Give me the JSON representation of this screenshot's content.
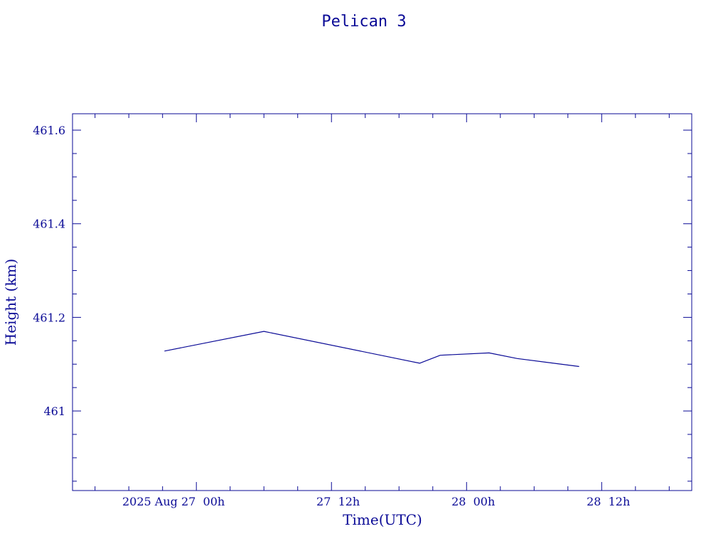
{
  "chart_data": {
    "type": "line",
    "title": "Pelican 3",
    "xlabel": "Time(UTC)",
    "ylabel": "Height (km)",
    "x_range": [
      "2025-08-26T13:00Z",
      "2025-08-28T20:00Z"
    ],
    "ylim": [
      460.83,
      461.635
    ],
    "x_tick_labels": [
      {
        "label": "2025 Aug 27  00h",
        "at": "2025-08-27T00:00Z"
      },
      {
        "label": "27  12h",
        "at": "2025-08-27T12:00Z"
      },
      {
        "label": "28  00h",
        "at": "2025-08-28T00:00Z"
      },
      {
        "label": "28  12h",
        "at": "2025-08-28T12:00Z"
      }
    ],
    "y_ticks": [
      461.0,
      461.2,
      461.4,
      461.6
    ],
    "y_tick_labels": [
      "461",
      "461.2",
      "461.4",
      "461.6"
    ],
    "grid": false,
    "colors": {
      "line": "#0a0a96",
      "axis": "#0a0a96",
      "text": "#0a0a96",
      "background": "#ffffff"
    },
    "series": [
      {
        "points": [
          {
            "x": "2025-08-26T21:10Z",
            "y": 461.128
          },
          {
            "x": "2025-08-27T06:00Z",
            "y": 461.17
          },
          {
            "x": "2025-08-27T19:50Z",
            "y": 461.102
          },
          {
            "x": "2025-08-27T21:40Z",
            "y": 461.119
          },
          {
            "x": "2025-08-28T02:00Z",
            "y": 461.124
          },
          {
            "x": "2025-08-28T04:30Z",
            "y": 461.112
          },
          {
            "x": "2025-08-28T10:00Z",
            "y": 461.095
          }
        ]
      }
    ]
  }
}
